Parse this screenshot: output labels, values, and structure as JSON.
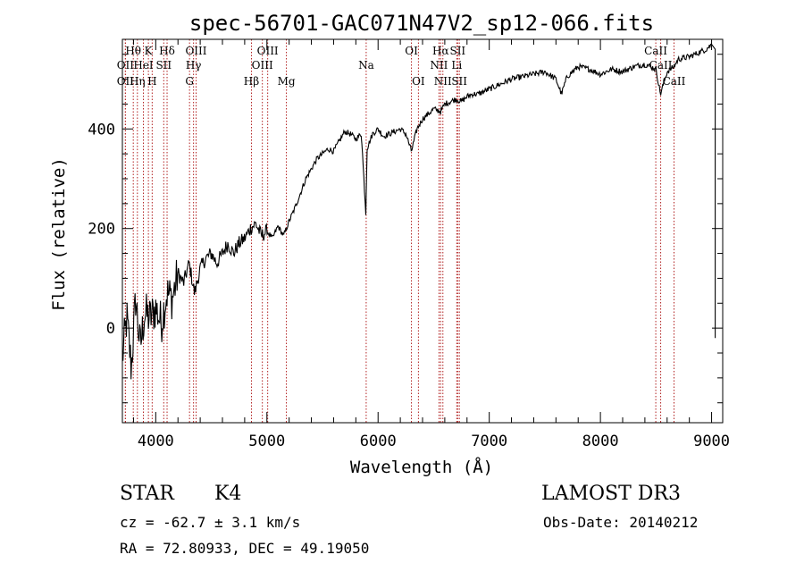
{
  "chart_data": {
    "type": "line",
    "title": "spec-56701-GAC071N47V2_sp12-066.fits",
    "xlabel": "Wavelength (Å)",
    "ylabel": "Flux (relative)",
    "xlim": [
      3700,
      9100
    ],
    "ylim": [
      -190,
      580
    ],
    "xticks": [
      4000,
      5000,
      6000,
      7000,
      8000,
      9000
    ],
    "xtick_labels": [
      "4000",
      "5000",
      "6000",
      "7000",
      "8000",
      "9000"
    ],
    "yticks": [
      0,
      200,
      400
    ],
    "ytick_labels": [
      "0",
      "200",
      "400"
    ],
    "series": [
      {
        "name": "spectrum",
        "x": [
          3700,
          3740,
          3780,
          3820,
          3860,
          3900,
          3950,
          4000,
          4050,
          4100,
          4150,
          4200,
          4250,
          4300,
          4350,
          4400,
          4450,
          4500,
          4550,
          4600,
          4650,
          4700,
          4750,
          4800,
          4850,
          4900,
          4950,
          5000,
          5050,
          5100,
          5150,
          5200,
          5250,
          5300,
          5350,
          5400,
          5450,
          5500,
          5550,
          5600,
          5650,
          5700,
          5750,
          5800,
          5850,
          5890,
          5900,
          5950,
          6000,
          6050,
          6100,
          6150,
          6200,
          6250,
          6300,
          6350,
          6400,
          6450,
          6500,
          6563,
          6600,
          6650,
          6700,
          6750,
          6800,
          6850,
          6900,
          6950,
          7000,
          7100,
          7200,
          7300,
          7400,
          7500,
          7600,
          7650,
          7700,
          7800,
          7900,
          8000,
          8100,
          8200,
          8300,
          8400,
          8500,
          8540,
          8600,
          8662,
          8700,
          8800,
          8900,
          8950,
          9000
        ],
        "values": [
          -60,
          20,
          -80,
          60,
          -40,
          30,
          20,
          40,
          10,
          70,
          60,
          110,
          90,
          130,
          70,
          120,
          140,
          150,
          130,
          150,
          170,
          150,
          170,
          180,
          200,
          210,
          185,
          195,
          180,
          205,
          185,
          215,
          240,
          270,
          300,
          320,
          340,
          350,
          360,
          355,
          375,
          395,
          390,
          380,
          390,
          230,
          360,
          390,
          400,
          385,
          390,
          395,
          400,
          390,
          355,
          400,
          420,
          430,
          440,
          435,
          450,
          455,
          460,
          455,
          465,
          470,
          470,
          475,
          480,
          490,
          500,
          505,
          510,
          515,
          500,
          470,
          505,
          525,
          520,
          510,
          520,
          515,
          525,
          530,
          520,
          470,
          515,
          525,
          540,
          545,
          555,
          560,
          570
        ]
      }
    ],
    "line_markers": [
      {
        "label": "OII",
        "wavelength": 3727,
        "row": 2
      },
      {
        "label": "Hθ",
        "wavelength": 3798,
        "row": 1
      },
      {
        "label": "OII",
        "wavelength": 3727,
        "row": 3
      },
      {
        "label": "HeI",
        "wavelength": 3889,
        "row": 2
      },
      {
        "label": "K",
        "wavelength": 3934,
        "row": 1
      },
      {
        "label": "Hη",
        "wavelength": 3835,
        "row": 3
      },
      {
        "label": "H",
        "wavelength": 3968,
        "row": 3
      },
      {
        "label": "SII",
        "wavelength": 4072,
        "row": 2
      },
      {
        "label": "Hδ",
        "wavelength": 4102,
        "row": 1
      },
      {
        "label": "OIII",
        "wavelength": 4363,
        "row": 1
      },
      {
        "label": "Hγ",
        "wavelength": 4340,
        "row": 2
      },
      {
        "label": "G",
        "wavelength": 4304,
        "row": 3
      },
      {
        "label": "Hβ",
        "wavelength": 4861,
        "row": 3
      },
      {
        "label": "OIII",
        "wavelength": 5007,
        "row": 1
      },
      {
        "label": "OIII",
        "wavelength": 4959,
        "row": 2
      },
      {
        "label": "Mg",
        "wavelength": 5175,
        "row": 3
      },
      {
        "label": "Na",
        "wavelength": 5893,
        "row": 2
      },
      {
        "label": "OI",
        "wavelength": 6300,
        "row": 1
      },
      {
        "label": "OI",
        "wavelength": 6363,
        "row": 3
      },
      {
        "label": "Hα",
        "wavelength": 6563,
        "row": 1
      },
      {
        "label": "SII",
        "wavelength": 6716,
        "row": 1
      },
      {
        "label": "NII",
        "wavelength": 6548,
        "row": 2
      },
      {
        "label": "Li",
        "wavelength": 6708,
        "row": 2
      },
      {
        "label": "NII",
        "wavelength": 6583,
        "row": 3
      },
      {
        "label": "SII",
        "wavelength": 6731,
        "row": 3
      },
      {
        "label": "CaII",
        "wavelength": 8498,
        "row": 1
      },
      {
        "label": "CaII",
        "wavelength": 8542,
        "row": 2
      },
      {
        "label": "CaII",
        "wavelength": 8662,
        "row": 3
      }
    ],
    "marker_color": "#b22222"
  },
  "info": {
    "object_type": "STAR",
    "subclass": "K4",
    "survey": "LAMOST DR3",
    "cz": "cz = -62.7 ± 3.1 km/s",
    "obs_date": "Obs-Date: 20140212",
    "coords": "RA =  72.80933, DEC =  49.19050"
  }
}
